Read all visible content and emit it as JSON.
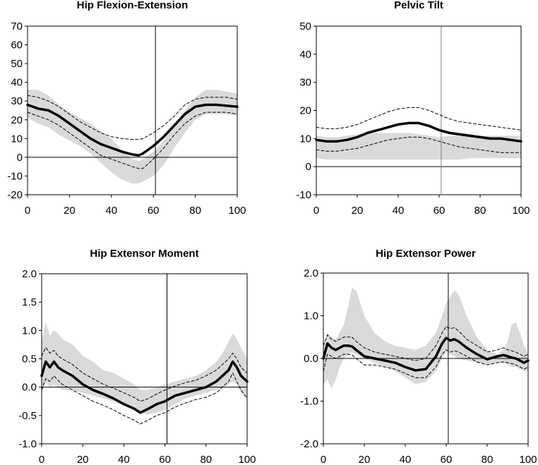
{
  "chart_data": [
    {
      "type": "line",
      "title": "Hip Flexion-Extension",
      "xlim": [
        0,
        100
      ],
      "ylim": [
        -20,
        70
      ],
      "xticks": [
        0,
        20,
        40,
        60,
        80,
        100
      ],
      "yticks": [
        -20,
        -10,
        0,
        10,
        20,
        30,
        40,
        50,
        60,
        70
      ],
      "ytick_labels": [
        "-20",
        "-10",
        "0",
        "10",
        "20",
        "30",
        "40",
        "50",
        "60",
        "70"
      ],
      "xtick_labels": [
        "0",
        "20",
        "40",
        "60",
        "80",
        "100"
      ],
      "vline_x": 61,
      "hline_y": 0,
      "x": [
        0,
        5,
        10,
        15,
        20,
        25,
        30,
        35,
        40,
        45,
        50,
        53,
        55,
        60,
        65,
        70,
        75,
        80,
        85,
        90,
        95,
        100
      ],
      "series": [
        {
          "name": "mean",
          "style": "thick",
          "values": [
            28,
            26,
            25,
            22,
            18,
            14,
            10,
            7,
            5,
            3,
            1.5,
            1,
            2,
            6,
            11,
            17,
            23,
            27,
            28,
            28,
            27.5,
            27
          ]
        },
        {
          "name": "upper",
          "style": "dashed",
          "values": [
            33,
            32,
            30,
            27,
            23,
            19,
            16,
            13,
            11,
            10,
            9.5,
            9.5,
            10,
            13,
            17,
            22,
            28,
            31,
            32,
            32,
            32,
            31
          ]
        },
        {
          "name": "lower",
          "style": "dashed",
          "values": [
            24,
            22,
            20,
            17,
            13,
            9,
            5,
            1,
            -1,
            -3,
            -5,
            -6,
            -6,
            -1,
            5,
            12,
            18,
            22,
            24,
            24,
            24,
            23
          ]
        }
      ],
      "band": {
        "upper": [
          36,
          36,
          33,
          28,
          24,
          21,
          18,
          14,
          10,
          4,
          -1,
          -2,
          -1,
          3,
          9,
          17,
          25,
          32,
          36,
          36,
          35,
          34
        ],
        "lower": [
          21,
          18,
          16,
          12,
          9,
          6,
          2,
          -3,
          -8,
          -12,
          -14,
          -14,
          -13,
          -10,
          -4,
          5,
          13,
          20,
          23,
          23,
          23,
          22
        ]
      }
    },
    {
      "type": "line",
      "title": "Pelvic Tilt",
      "xlim": [
        0,
        100
      ],
      "ylim": [
        -10,
        50
      ],
      "xticks": [
        0,
        20,
        40,
        60,
        80,
        100
      ],
      "yticks": [
        -10,
        0,
        10,
        20,
        30,
        40,
        50
      ],
      "ytick_labels": [
        "-10",
        "0",
        "10",
        "20",
        "30",
        "40",
        "50"
      ],
      "xtick_labels": [
        "0",
        "20",
        "40",
        "60",
        "80",
        "100"
      ],
      "vline_x": 61,
      "hline_y": 0,
      "x": [
        0,
        5,
        10,
        15,
        20,
        25,
        30,
        35,
        40,
        45,
        50,
        55,
        60,
        65,
        70,
        75,
        80,
        85,
        90,
        95,
        100
      ],
      "series": [
        {
          "name": "mean",
          "style": "thick",
          "values": [
            9.5,
            9,
            9,
            9.5,
            10.5,
            12,
            13,
            14,
            15,
            15.5,
            15.5,
            14.5,
            13,
            12,
            11.5,
            11,
            10.5,
            10,
            10,
            9.5,
            9
          ]
        },
        {
          "name": "upper",
          "style": "dashed",
          "values": [
            14,
            13.5,
            13.5,
            14,
            15,
            16.5,
            18,
            19.5,
            20.5,
            21,
            21,
            20,
            18.5,
            17,
            16,
            15.5,
            15,
            14.5,
            14,
            13.5,
            13
          ]
        },
        {
          "name": "lower",
          "style": "dashed",
          "values": [
            6,
            5.5,
            5.5,
            6,
            6.5,
            7.5,
            8.5,
            9.5,
            10,
            10.5,
            10.5,
            10,
            9,
            8,
            7,
            6.5,
            6,
            5.5,
            5,
            5,
            5
          ]
        }
      ],
      "band": {
        "upper": [
          11,
          10.5,
          10.5,
          11,
          11.5,
          12,
          12,
          12,
          12,
          12,
          11.5,
          11,
          10.5,
          11,
          11,
          11,
          11,
          11,
          11,
          11,
          11
        ],
        "lower": [
          3,
          2.5,
          2.5,
          2.5,
          2.5,
          2.5,
          2.5,
          2.5,
          2.5,
          2.5,
          2.5,
          2.5,
          2.5,
          2.5,
          2.5,
          3,
          3,
          3,
          3,
          3,
          3
        ]
      }
    },
    {
      "type": "line",
      "title": "Hip Extensor Moment",
      "xlim": [
        0,
        100
      ],
      "ylim": [
        -1.0,
        2.0
      ],
      "xticks": [
        0,
        20,
        40,
        60,
        80,
        100
      ],
      "yticks": [
        -1.0,
        -0.5,
        0.0,
        0.5,
        1.0,
        1.5,
        2.0
      ],
      "ytick_labels": [
        "-1.0",
        "-0.5",
        "0.0",
        "0.5",
        "1.0",
        "1.5",
        "2.0"
      ],
      "xtick_labels": [
        "0",
        "20",
        "40",
        "60",
        "80",
        "100"
      ],
      "vline_x": 61,
      "hline_y": 0,
      "x": [
        0,
        2,
        4,
        6,
        8,
        10,
        15,
        20,
        25,
        30,
        35,
        40,
        45,
        48,
        52,
        56,
        60,
        65,
        70,
        75,
        80,
        85,
        88,
        91,
        93,
        95,
        97,
        100
      ],
      "series": [
        {
          "name": "mean",
          "style": "thick",
          "values": [
            0.2,
            0.45,
            0.35,
            0.45,
            0.35,
            0.3,
            0.2,
            0.05,
            -0.05,
            -0.12,
            -0.2,
            -0.3,
            -0.38,
            -0.45,
            -0.38,
            -0.3,
            -0.25,
            -0.15,
            -0.1,
            -0.05,
            0.0,
            0.1,
            0.2,
            0.3,
            0.45,
            0.35,
            0.2,
            0.1
          ]
        },
        {
          "name": "upper",
          "style": "dashed",
          "values": [
            0.55,
            0.7,
            0.6,
            0.65,
            0.55,
            0.5,
            0.4,
            0.25,
            0.15,
            0.05,
            -0.02,
            -0.1,
            -0.18,
            -0.25,
            -0.2,
            -0.12,
            -0.05,
            0.02,
            0.08,
            0.12,
            0.2,
            0.3,
            0.4,
            0.5,
            0.6,
            0.5,
            0.35,
            0.25
          ]
        },
        {
          "name": "lower",
          "style": "dashed",
          "values": [
            -0.05,
            0.15,
            0.1,
            0.2,
            0.12,
            0.05,
            -0.05,
            -0.15,
            -0.25,
            -0.32,
            -0.4,
            -0.5,
            -0.58,
            -0.65,
            -0.58,
            -0.5,
            -0.45,
            -0.35,
            -0.28,
            -0.22,
            -0.18,
            -0.1,
            0.0,
            0.1,
            0.25,
            0.1,
            -0.05,
            -0.2
          ]
        }
      ],
      "band": {
        "upper": [
          0.8,
          1.15,
          0.9,
          1.0,
          0.95,
          0.85,
          0.75,
          0.55,
          0.45,
          0.3,
          0.25,
          0.15,
          0.05,
          -0.05,
          -0.05,
          0.0,
          0.05,
          0.1,
          0.15,
          0.2,
          0.3,
          0.45,
          0.6,
          0.8,
          0.95,
          0.85,
          0.7,
          0.5
        ],
        "lower": [
          -0.1,
          0.1,
          0.0,
          0.05,
          0.0,
          -0.05,
          -0.05,
          -0.1,
          -0.15,
          -0.2,
          -0.25,
          -0.32,
          -0.38,
          -0.45,
          -0.48,
          -0.45,
          -0.4,
          -0.3,
          -0.2,
          -0.15,
          -0.1,
          -0.05,
          0.0,
          0.05,
          0.1,
          0.05,
          -0.1,
          -0.2
        ]
      }
    },
    {
      "type": "line",
      "title": "Hip Extensor Power",
      "xlim": [
        0,
        100
      ],
      "ylim": [
        -2.0,
        2.0
      ],
      "xticks": [
        0,
        20,
        40,
        60,
        80,
        100
      ],
      "yticks": [
        -2.0,
        -1.0,
        0.0,
        1.0,
        2.0
      ],
      "ytick_labels": [
        "-2.0",
        "-1.0",
        "0.0",
        "1.0",
        "2.0"
      ],
      "xtick_labels": [
        "0",
        "20",
        "40",
        "60",
        "80",
        "100"
      ],
      "vline_x": 61,
      "hline_y": 0,
      "x": [
        0,
        2,
        4,
        6,
        8,
        10,
        12,
        14,
        16,
        20,
        25,
        30,
        35,
        40,
        45,
        50,
        55,
        58,
        60,
        62,
        64,
        66,
        70,
        75,
        80,
        85,
        88,
        90,
        92,
        94,
        96,
        98,
        100
      ],
      "series": [
        {
          "name": "mean",
          "style": "thick",
          "values": [
            0.0,
            0.35,
            0.25,
            0.2,
            0.25,
            0.3,
            0.3,
            0.28,
            0.2,
            0.05,
            0.0,
            -0.05,
            -0.1,
            -0.2,
            -0.28,
            -0.25,
            0.05,
            0.35,
            0.48,
            0.42,
            0.45,
            0.4,
            0.25,
            0.1,
            -0.02,
            0.05,
            0.08,
            0.05,
            0.02,
            0.0,
            -0.05,
            -0.1,
            -0.05
          ]
        },
        {
          "name": "upper",
          "style": "dashed",
          "values": [
            0.3,
            0.55,
            0.45,
            0.4,
            0.45,
            0.5,
            0.5,
            0.5,
            0.4,
            0.25,
            0.15,
            0.1,
            0.05,
            0.0,
            -0.05,
            0.0,
            0.3,
            0.6,
            0.75,
            0.7,
            0.72,
            0.65,
            0.45,
            0.3,
            0.15,
            0.2,
            0.25,
            0.2,
            0.18,
            0.15,
            0.1,
            0.05,
            0.1
          ]
        },
        {
          "name": "lower",
          "style": "dashed",
          "values": [
            -0.3,
            0.1,
            0.05,
            0.0,
            0.05,
            0.1,
            0.1,
            0.08,
            0.0,
            -0.15,
            -0.15,
            -0.2,
            -0.25,
            -0.35,
            -0.45,
            -0.45,
            -0.2,
            0.1,
            0.2,
            0.15,
            0.18,
            0.15,
            0.05,
            -0.08,
            -0.15,
            -0.1,
            -0.08,
            -0.1,
            -0.12,
            -0.15,
            -0.2,
            -0.25,
            -0.2
          ]
        }
      ],
      "band": {
        "upper": [
          0.3,
          0.6,
          0.5,
          0.45,
          0.6,
          0.8,
          1.2,
          1.65,
          1.6,
          1.0,
          0.6,
          0.4,
          0.3,
          0.25,
          0.2,
          0.3,
          0.6,
          1.0,
          1.3,
          1.45,
          1.6,
          1.5,
          1.0,
          0.5,
          0.2,
          0.1,
          0.2,
          0.4,
          0.8,
          0.85,
          0.6,
          0.3,
          0.1
        ],
        "lower": [
          -0.6,
          -0.5,
          -0.7,
          -0.5,
          -0.2,
          0.0,
          0.1,
          0.15,
          0.1,
          0.0,
          -0.1,
          -0.2,
          -0.3,
          -0.45,
          -0.6,
          -0.55,
          -0.3,
          0.0,
          0.15,
          0.1,
          0.05,
          0.0,
          -0.05,
          -0.1,
          -0.15,
          -0.1,
          -0.1,
          -0.15,
          -0.2,
          -0.2,
          -0.25,
          -0.3,
          -0.3
        ]
      }
    }
  ]
}
